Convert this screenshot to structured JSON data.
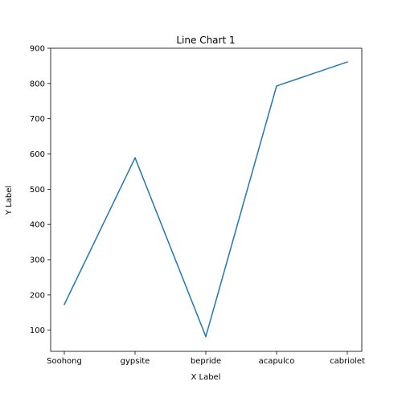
{
  "chart_data": {
    "type": "line",
    "title": "Line Chart 1",
    "xlabel": "X Label",
    "ylabel": "Y Label",
    "categories": [
      "Soohong",
      "gypsite",
      "bepride",
      "acapulco",
      "cabriolet"
    ],
    "series": [
      {
        "values": [
          173,
          589,
          82,
          793,
          861
        ],
        "color": "#1f77b4"
      }
    ],
    "ylim": [
      40,
      900
    ],
    "yticks": [
      100,
      200,
      300,
      400,
      500,
      600,
      700,
      800,
      900
    ],
    "grid": false,
    "legend": "none"
  }
}
